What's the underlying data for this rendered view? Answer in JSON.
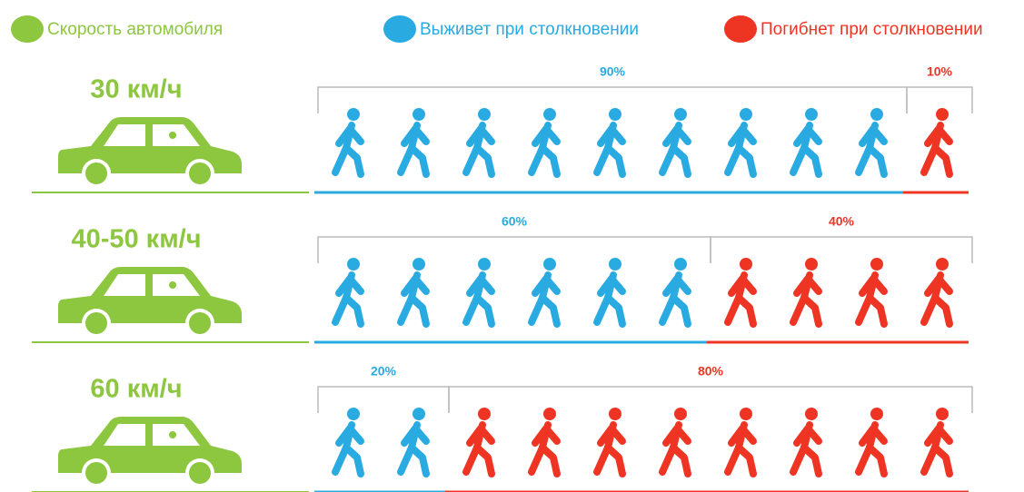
{
  "chart_data": {
    "type": "pictogram",
    "speed_legend": {
      "name": "Скорость автомобиля",
      "color": "#8dc63f"
    },
    "categories": [
      "30 км/ч",
      "40-50 км/ч",
      "60 км/ч"
    ],
    "series": [
      {
        "name": "Выживет при столкновении",
        "color": "#29abe2",
        "values": [
          90,
          60,
          20
        ],
        "value_labels": [
          "90%",
          "60%",
          "20%"
        ]
      },
      {
        "name": "Погибнет при столкновении",
        "color": "#ee3524",
        "values": [
          10,
          40,
          80
        ],
        "value_labels": [
          "10%",
          "40%",
          "80%"
        ]
      }
    ]
  }
}
